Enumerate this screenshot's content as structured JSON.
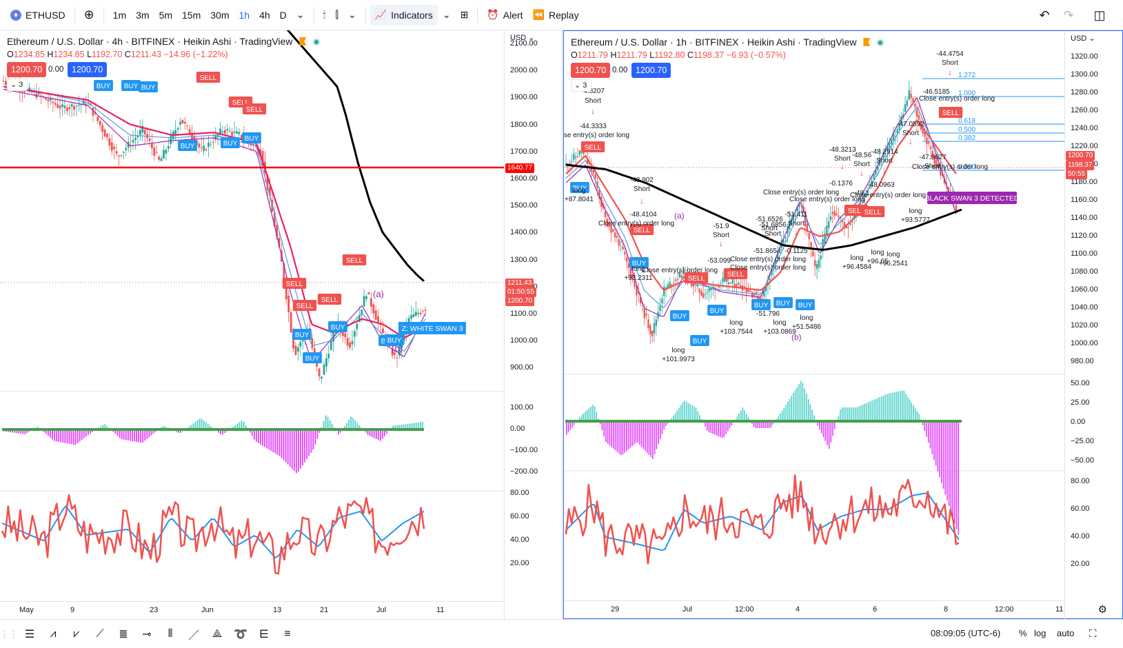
{
  "toolbar": {
    "symbol": "ETHUSD",
    "intervals": [
      "1m",
      "3m",
      "5m",
      "15m",
      "30m",
      "1h",
      "4h",
      "D"
    ],
    "active_interval": "1h",
    "indicators_label": "Indicators",
    "alert_label": "Alert",
    "replay_label": "Replay"
  },
  "left_chart": {
    "title": "Ethereum / U.S. Dollar · 4h · BITFINEX · Heikin Ashi · TradingView",
    "ohlc": {
      "o": "1234.85",
      "h": "1234.85",
      "l": "1192.70",
      "c": "1211.43",
      "chg": "−14.96 (−1.22%)"
    },
    "bid": "1200.70",
    "spread": "0.00",
    "ask": "1200.70",
    "collapse": "3",
    "unit": "USD",
    "price_ticks": [
      "2100.00",
      "2000.00",
      "1900.00",
      "1800.00",
      "1700.00",
      "1600.00",
      "1500.00",
      "1400.00",
      "1300.00",
      "1200.00",
      "1100.00",
      "1000.00",
      "900.00"
    ],
    "osc_ticks": [
      "100.00",
      "0.00",
      "−100.00",
      "−200.00"
    ],
    "rsi_ticks": [
      "80.00",
      "60.00",
      "40.00",
      "20.00"
    ],
    "time_ticks": [
      "May",
      "9",
      "23",
      "Jun",
      "13",
      "21",
      "Jul",
      "11"
    ],
    "tags": {
      "hline": "1640.77",
      "price": "1211.43",
      "countdown": "01:50:55",
      "bid": "1200.70"
    },
    "labels": [
      "BUY",
      "SELL",
      "(a)",
      "(b)",
      "Z: WHITE SWAN 3"
    ]
  },
  "right_chart": {
    "title": "Ethereum / U.S. Dollar · 1h · BITFINEX · Heikin Ashi · TradingView",
    "ohlc": {
      "o": "1211.79",
      "h": "1211.79",
      "l": "1192.80",
      "c": "1198.37",
      "chg": "−6.93 (−0.57%)"
    },
    "bid": "1200.70",
    "spread": "0.00",
    "ask": "1200.70",
    "collapse": "3",
    "unit": "USD",
    "price_ticks": [
      "1320.00",
      "1300.00",
      "1280.00",
      "1260.00",
      "1240.00",
      "1220.00",
      "1200.00",
      "1180.00",
      "1160.00",
      "1140.00",
      "1120.00",
      "1100.00",
      "1080.00",
      "1060.00",
      "1040.00",
      "1020.00",
      "1000.00",
      "980.00"
    ],
    "osc_ticks": [
      "50.00",
      "25.00",
      "0.00",
      "−25.00",
      "−50.00"
    ],
    "rsi_ticks": [
      "80.00",
      "60.00",
      "40.00",
      "20.00"
    ],
    "time_ticks": [
      "29",
      "Jul",
      "12:00",
      "4",
      "6",
      "8",
      "12:00",
      "11"
    ],
    "tags": {
      "bid": "1200.70",
      "price": "1198.37",
      "countdown": "50:55"
    },
    "fib": [
      "1.272",
      "1.000",
      "0.618",
      "0.500",
      "0.382",
      "0.000"
    ],
    "banner": "BLACK SWAN 3 DETECTED",
    "annotations": [
      "-44.4754",
      "Short",
      "-46.5185",
      "Close entry(s) order long",
      "-4.8207",
      "Short",
      "-44.3333",
      "se entry(s) order long",
      "long",
      "+87.8041",
      "-48.902",
      "Short",
      "-48.4104",
      "Close entry(s) order long",
      "long",
      "+93.2311",
      "long",
      "+101.9973",
      "-51.9",
      "Short",
      "-53.099",
      "Close entry(s) order long",
      "-51.6526",
      "Short",
      "-51.411",
      "Short",
      "-51.6856",
      "Short",
      "-51.865",
      "-0.1125",
      "Close entry(s) order long",
      "Close entry(s) order long",
      "long",
      "+103.7544",
      "long",
      "+103.0869",
      "-51.796",
      "long",
      "+51.5486",
      "-48.3213",
      "Short",
      "-48.56",
      "Short",
      "-48.2914",
      "Short",
      "-0.1376",
      "Close entry(s) order long",
      "-48.1",
      "Close entry(s) order long",
      "-48.0963",
      "Close entry(s) order long",
      "-47.0592",
      "Short",
      "-47.9627",
      "Short",
      "Close entry(s) order long",
      "long",
      "+93.5777",
      "long",
      "+96.4584",
      "long",
      "+96.65",
      "long",
      "+96.2541"
    ]
  },
  "bottom": {
    "clock": "08:09:05 (UTC-6)",
    "pct": "%",
    "log": "log",
    "auto": "auto"
  }
}
